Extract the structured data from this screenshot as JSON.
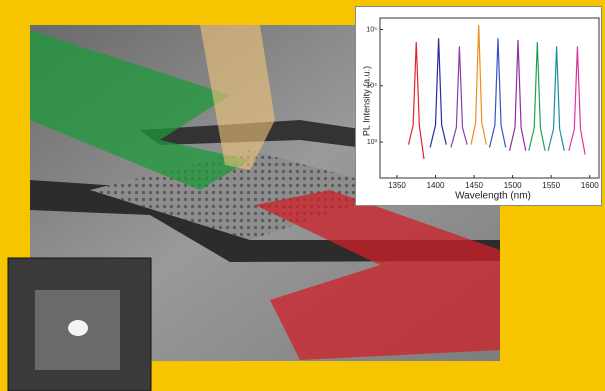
{
  "chart_data": {
    "type": "line",
    "x_label": "Wavelength (nm)",
    "y_label": "PL Intensity (a.u.)",
    "xlim": [
      1328,
      1612
    ],
    "xticks": [
      1350,
      1400,
      1450,
      1500,
      1550,
      1600
    ],
    "ylim": [
      230,
      160000
    ],
    "log_y": true,
    "yticks": [
      {
        "value": 1000,
        "label": "10³"
      },
      {
        "value": 10000,
        "label": "10⁴"
      },
      {
        "value": 100000,
        "label": "10⁵"
      }
    ],
    "series": [
      {
        "color": "#e8212b",
        "x": [
          1365,
          1371,
          1375,
          1379,
          1385
        ],
        "values": [
          900,
          2000,
          60000,
          2000,
          500
        ]
      },
      {
        "color": "#2a2a9a",
        "x": [
          1393,
          1400,
          1404,
          1408,
          1414
        ],
        "values": [
          800,
          2000,
          70000,
          2000,
          900
        ]
      },
      {
        "color": "#8a3fa8",
        "x": [
          1420,
          1427,
          1431,
          1435,
          1441
        ],
        "values": [
          800,
          1800,
          50000,
          1800,
          900
        ]
      },
      {
        "color": "#f08c1a",
        "x": [
          1446,
          1452,
          1456,
          1460,
          1466
        ],
        "values": [
          900,
          2200,
          120000,
          2200,
          900
        ]
      },
      {
        "color": "#3b52c4",
        "x": [
          1470,
          1477,
          1481,
          1485,
          1491
        ],
        "values": [
          800,
          2000,
          70000,
          2000,
          800
        ]
      },
      {
        "color": "#8e2f9c",
        "x": [
          1496,
          1503,
          1507,
          1511,
          1517
        ],
        "values": [
          700,
          1800,
          65000,
          1800,
          700
        ]
      },
      {
        "color": "#23a14a",
        "x": [
          1521,
          1528,
          1532,
          1536,
          1542
        ],
        "values": [
          700,
          1800,
          60000,
          1800,
          700
        ]
      },
      {
        "color": "#1f8fa0",
        "x": [
          1546,
          1553,
          1557,
          1561,
          1567
        ],
        "values": [
          700,
          1700,
          50000,
          1700,
          700
        ]
      },
      {
        "color": "#e0339a",
        "x": [
          1573,
          1580,
          1584,
          1588,
          1594
        ],
        "values": [
          700,
          1700,
          50000,
          1700,
          600
        ]
      }
    ]
  }
}
